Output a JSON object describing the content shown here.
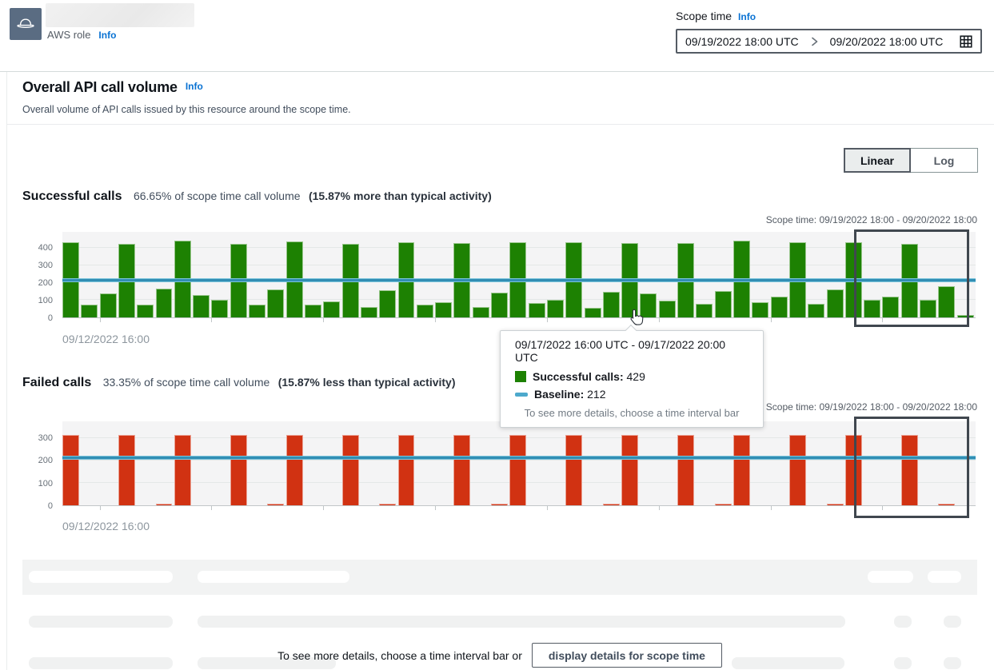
{
  "header": {
    "role_type_label": "AWS role",
    "role_info_label": "Info",
    "scope_time_label": "Scope time",
    "scope_info_label": "Info",
    "scope_start": "09/19/2022 18:00 UTC",
    "scope_end": "09/20/2022 18:00 UTC"
  },
  "overview": {
    "title": "Overall API call volume",
    "info_label": "Info",
    "description": "Overall volume of API calls issued by this resource around the scope time."
  },
  "toggle": {
    "linear_label": "Linear",
    "log_label": "Log",
    "selected": "Linear"
  },
  "scope_banner": "Scope time: 09/19/2022 18:00 - 09/20/2022 18:00",
  "x_axis_start": "09/12/2022 16:00",
  "successful": {
    "title": "Successful calls",
    "volume_text": "66.65% of scope time call volume",
    "comparison_text": "(15.87% more than typical activity)"
  },
  "failed": {
    "title": "Failed calls",
    "volume_text": "33.35% of scope time call volume",
    "comparison_text": "(15.87% less than typical activity)"
  },
  "tooltip": {
    "time_range": "09/17/2022 16:00 UTC - 09/17/2022 20:00 UTC",
    "series_label": "Successful calls:",
    "series_value": "429",
    "baseline_label": "Baseline:",
    "baseline_value": "212",
    "footer": "To see more details, choose a time interval bar"
  },
  "cta": {
    "hint": "To see more details, choose a time interval bar or",
    "button_label": "display details for scope time"
  },
  "chart_data": [
    {
      "type": "bar",
      "title": "Successful calls",
      "x_start_label": "09/12/2022 16:00",
      "interval_hours": 4,
      "values": [
        430,
        75,
        140,
        420,
        75,
        165,
        440,
        130,
        100,
        420,
        75,
        160,
        435,
        75,
        90,
        423,
        62,
        155,
        432,
        75,
        86,
        428,
        60,
        141,
        432,
        82,
        100,
        432,
        55,
        145,
        429,
        140,
        95,
        425,
        80,
        150,
        440,
        85,
        120,
        430,
        80,
        160,
        430,
        100,
        120,
        420,
        100,
        180,
        15
      ],
      "baseline": 212,
      "yticks": [
        0,
        100,
        200,
        300,
        400
      ],
      "ymax": 491,
      "bar_color": "#1d8102",
      "baseline_color": "#318eb4",
      "scope_highlight": "09/19/2022 18:00 - 09/20/2022 18:00",
      "legend": [
        "Successful calls",
        "Baseline"
      ]
    },
    {
      "type": "bar",
      "title": "Failed calls",
      "x_start_label": "09/12/2022 16:00",
      "interval_hours": 4,
      "values": [
        315,
        0,
        0,
        315,
        0,
        6,
        315,
        0,
        0,
        315,
        0,
        6,
        315,
        0,
        0,
        315,
        0,
        6,
        315,
        0,
        0,
        315,
        0,
        6,
        315,
        0,
        0,
        315,
        0,
        6,
        315,
        0,
        0,
        315,
        0,
        6,
        315,
        0,
        0,
        315,
        0,
        6,
        315,
        0,
        0,
        315,
        0,
        6,
        0
      ],
      "baseline": 210,
      "yticks": [
        0,
        100,
        200,
        300
      ],
      "ymax": 374,
      "bar_color": "#d13212",
      "baseline_color": "#318eb4",
      "scope_highlight": "09/19/2022 18:00 - 09/20/2022 18:00",
      "legend": [
        "Failed calls",
        "Baseline"
      ]
    }
  ]
}
